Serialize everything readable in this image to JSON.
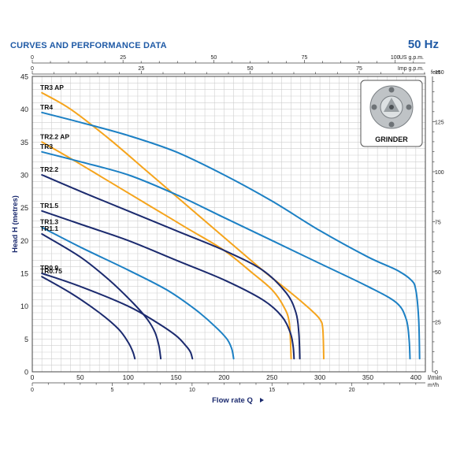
{
  "header": {
    "title": "CURVES AND PERFORMANCE DATA",
    "frequency": "50 Hz"
  },
  "colors": {
    "blue": "#1c80c4",
    "light_blue": "#1ea4da",
    "navy": "#1b2a6e",
    "orange": "#f5a41c",
    "grid": "#cfcfcf",
    "title": "#1f5aa6"
  },
  "inset": {
    "label": "GRINDER"
  },
  "chart_data": {
    "type": "line",
    "xlabel": "Flow rate Q",
    "ylabel": "Head H (metres)",
    "x_unit": "l/min",
    "xlim": [
      0,
      410
    ],
    "ylim": [
      0,
      45
    ],
    "x_ticks": [
      0,
      50,
      100,
      150,
      200,
      250,
      300,
      350,
      400
    ],
    "y_ticks": [
      0,
      5,
      10,
      15,
      20,
      25,
      30,
      35,
      40,
      45
    ],
    "grid": true,
    "secondary_axes": {
      "us_gpm": {
        "label": "US g.p.m.",
        "ticks": [
          0,
          25,
          50,
          75,
          100
        ]
      },
      "imp_gpm": {
        "label": "Imp g.p.m.",
        "ticks": [
          0,
          25,
          50,
          75
        ]
      },
      "m3h": {
        "label": "m³/h",
        "ticks": [
          0,
          5,
          10,
          15,
          20
        ]
      },
      "feet": {
        "label": "feet",
        "ticks": [
          0,
          25,
          50,
          75,
          100,
          125,
          150
        ]
      }
    },
    "series": [
      {
        "name": "TR3 AP",
        "color": "orange",
        "points": [
          [
            10,
            42.5
          ],
          [
            40,
            40
          ],
          [
            80,
            35.5
          ],
          [
            120,
            30.5
          ],
          [
            160,
            25.5
          ],
          [
            200,
            20.5
          ],
          [
            240,
            15.5
          ],
          [
            270,
            12
          ],
          [
            290,
            9.5
          ],
          [
            300,
            8
          ],
          [
            303,
            6.5
          ],
          [
            304,
            2
          ]
        ]
      },
      {
        "name": "TR4",
        "color": "blue",
        "points": [
          [
            10,
            39.5
          ],
          [
            50,
            38
          ],
          [
            100,
            36
          ],
          [
            150,
            33.5
          ],
          [
            200,
            30
          ],
          [
            250,
            26
          ],
          [
            300,
            21.5
          ],
          [
            350,
            17.5
          ],
          [
            380,
            15.5
          ],
          [
            395,
            14
          ],
          [
            400,
            12.5
          ],
          [
            403,
            8
          ],
          [
            404,
            2
          ]
        ]
      },
      {
        "name": "TR2.2 AP",
        "color": "orange",
        "points": [
          [
            10,
            35
          ],
          [
            40,
            32.5
          ],
          [
            80,
            29
          ],
          [
            120,
            25.5
          ],
          [
            160,
            22
          ],
          [
            200,
            18.5
          ],
          [
            230,
            15
          ],
          [
            250,
            12.5
          ],
          [
            262,
            10
          ],
          [
            268,
            7.5
          ],
          [
            270,
            2
          ]
        ]
      },
      {
        "name": "TR3",
        "color": "blue",
        "points": [
          [
            10,
            33.5
          ],
          [
            50,
            32
          ],
          [
            100,
            30
          ],
          [
            150,
            27
          ],
          [
            200,
            23.5
          ],
          [
            250,
            20
          ],
          [
            300,
            16.5
          ],
          [
            350,
            13
          ],
          [
            380,
            10.5
          ],
          [
            390,
            8
          ],
          [
            393,
            5
          ],
          [
            394,
            2
          ]
        ]
      },
      {
        "name": "TR2.2",
        "color": "navy",
        "points": [
          [
            10,
            30
          ],
          [
            50,
            27.5
          ],
          [
            100,
            24.5
          ],
          [
            150,
            21.5
          ],
          [
            200,
            18.5
          ],
          [
            240,
            15.5
          ],
          [
            265,
            12
          ],
          [
            275,
            9
          ],
          [
            278,
            6
          ],
          [
            279,
            2
          ]
        ]
      },
      {
        "name": "TR1.5",
        "color": "navy",
        "points": [
          [
            10,
            24.5
          ],
          [
            50,
            22.5
          ],
          [
            100,
            20
          ],
          [
            150,
            17
          ],
          [
            200,
            14
          ],
          [
            240,
            11
          ],
          [
            260,
            8.5
          ],
          [
            269,
            6
          ],
          [
            272,
            4
          ],
          [
            273,
            2
          ]
        ]
      },
      {
        "name": "TR1.3",
        "color": "blue",
        "points": [
          [
            10,
            22
          ],
          [
            50,
            19
          ],
          [
            100,
            15.5
          ],
          [
            140,
            12.5
          ],
          [
            170,
            9.5
          ],
          [
            190,
            7
          ],
          [
            203,
            5
          ],
          [
            208,
            3.5
          ],
          [
            210,
            2
          ]
        ]
      },
      {
        "name": "TR1.1",
        "color": "navy",
        "points": [
          [
            10,
            21
          ],
          [
            50,
            17.5
          ],
          [
            80,
            14
          ],
          [
            105,
            10.5
          ],
          [
            120,
            8
          ],
          [
            128,
            6
          ],
          [
            132,
            4
          ],
          [
            134,
            2
          ]
        ]
      },
      {
        "name": "TR0.9",
        "color": "navy",
        "points": [
          [
            10,
            15
          ],
          [
            50,
            13
          ],
          [
            100,
            10
          ],
          [
            130,
            7.5
          ],
          [
            150,
            5.5
          ],
          [
            160,
            4
          ],
          [
            165,
            3
          ],
          [
            167,
            2
          ]
        ]
      },
      {
        "name": "TR0.75",
        "color": "navy",
        "points": [
          [
            10,
            14.5
          ],
          [
            40,
            12
          ],
          [
            70,
            9
          ],
          [
            90,
            6.5
          ],
          [
            100,
            4.5
          ],
          [
            105,
            3
          ],
          [
            107,
            2
          ]
        ]
      }
    ]
  }
}
